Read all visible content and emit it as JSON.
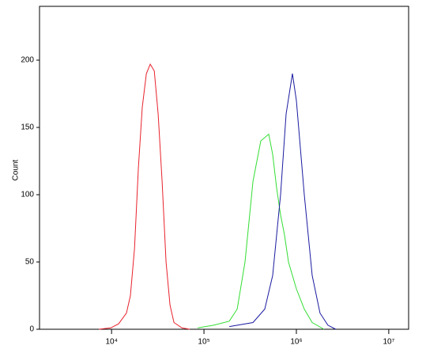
{
  "chart_data": {
    "type": "line",
    "y_label": "Count",
    "xscale": "log",
    "xlim": [
      1660,
      16400000
    ],
    "ylim": [
      0,
      240
    ],
    "xticks": [
      {
        "value": 10000,
        "label": "10⁴"
      },
      {
        "value": 100000,
        "label": "10⁵"
      },
      {
        "value": 1000000,
        "label": "10⁶"
      },
      {
        "value": 10000000,
        "label": "10⁷"
      }
    ],
    "yticks": [
      0,
      50,
      100,
      150,
      200
    ],
    "series": [
      {
        "color": "#e8212b",
        "x": [
          7300,
          9800,
          11900,
          14500,
          16000,
          17700,
          19500,
          21500,
          23800,
          26200,
          29000,
          31900,
          35200,
          38900,
          42900,
          47300,
          57700,
          70200
        ],
        "values": [
          0,
          1,
          4,
          12,
          25,
          60,
          120,
          165,
          190,
          197,
          192,
          160,
          110,
          50,
          18,
          5,
          1,
          0
        ]
      },
      {
        "color": "#33dd33",
        "x": [
          85500,
          127000,
          188000,
          229000,
          278000,
          339000,
          412000,
          502000,
          554000,
          611000,
          675000,
          745000,
          822000,
          1000000,
          1217000,
          1482000,
          1992000
        ],
        "values": [
          1,
          3,
          6,
          15,
          50,
          110,
          140,
          145,
          130,
          105,
          85,
          70,
          50,
          30,
          15,
          5,
          0
        ]
      },
      {
        "color": "#1a1aa0",
        "x": [
          188000,
          339000,
          455000,
          554000,
          675000,
          774000,
          906000,
          1000000,
          1217000,
          1482000,
          1803000,
          2196000,
          2675000
        ],
        "values": [
          2,
          5,
          15,
          40,
          100,
          160,
          190,
          170,
          100,
          40,
          12,
          3,
          0
        ]
      }
    ]
  }
}
